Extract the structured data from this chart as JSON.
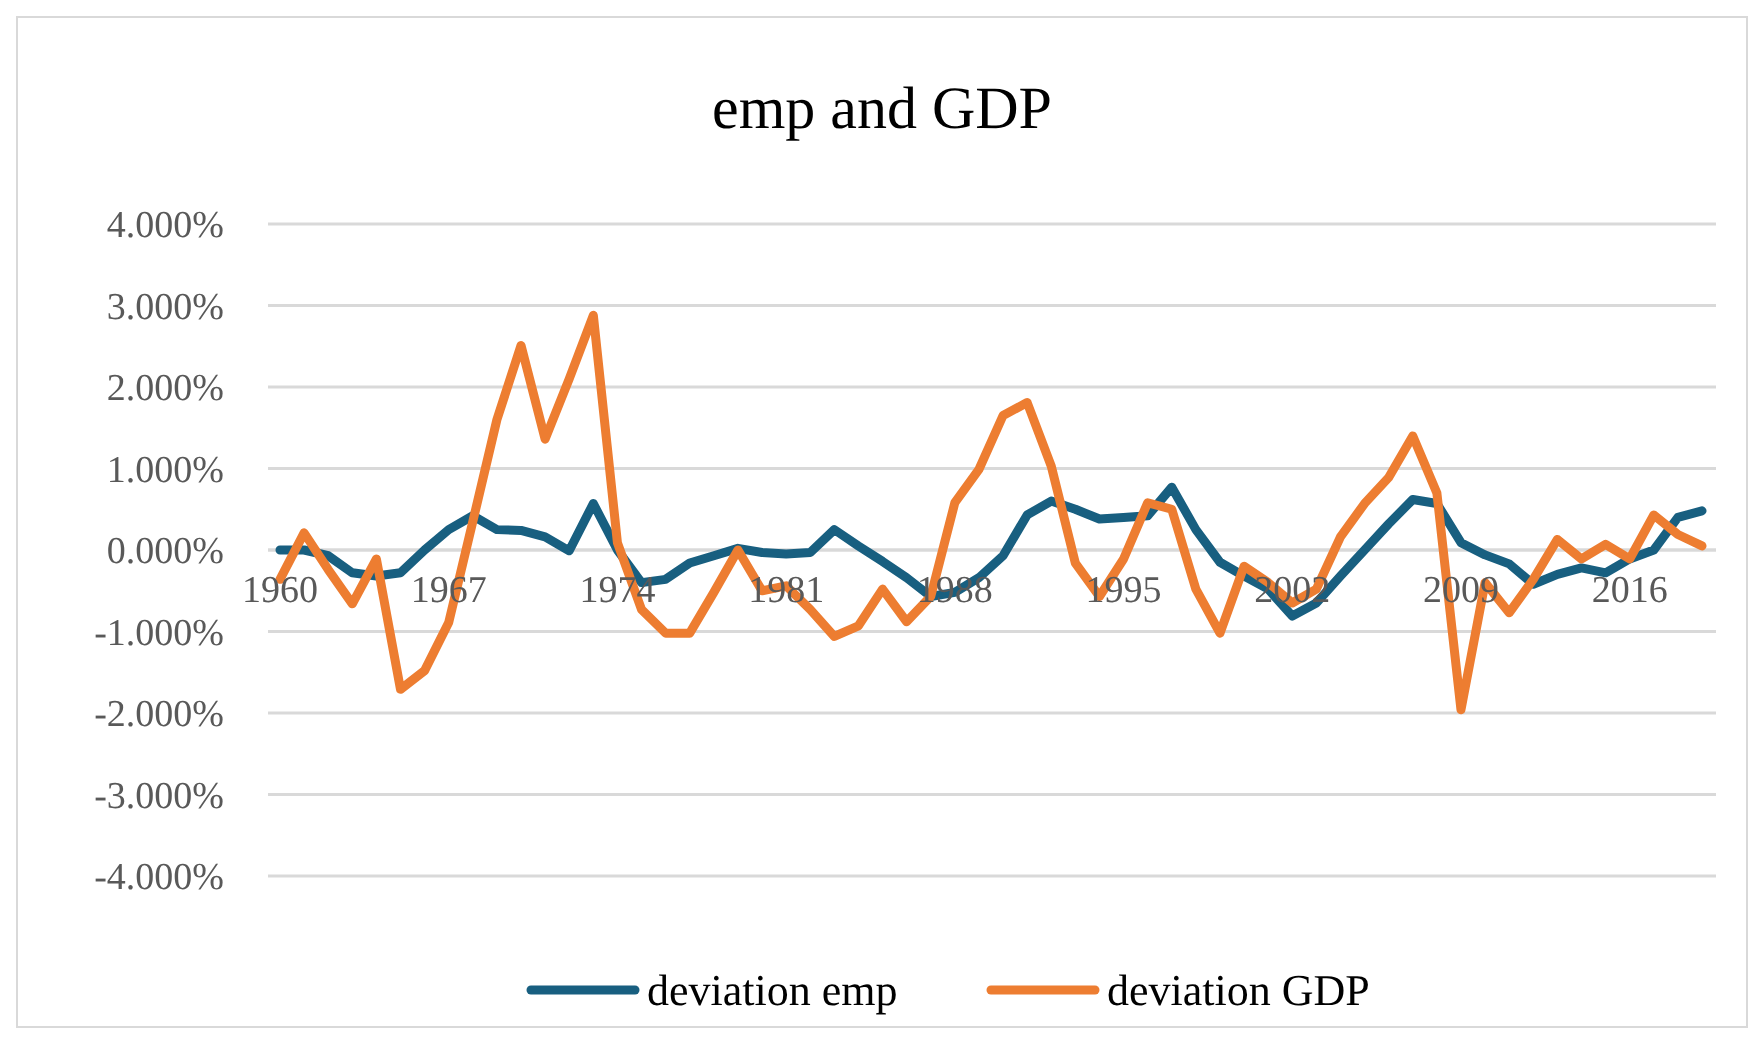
{
  "chart_data": {
    "type": "line",
    "title": "emp and GDP",
    "categories": [
      "1960",
      null,
      null,
      null,
      null,
      null,
      null,
      "1967",
      null,
      null,
      null,
      null,
      null,
      null,
      "1974",
      null,
      null,
      null,
      null,
      null,
      null,
      "1981",
      null,
      null,
      null,
      null,
      null,
      null,
      "1988",
      null,
      null,
      null,
      null,
      null,
      null,
      "1995",
      null,
      null,
      null,
      null,
      null,
      null,
      "2002",
      null,
      null,
      null,
      null,
      null,
      null,
      "2009",
      null,
      null,
      null,
      null,
      null,
      null,
      "2016",
      null,
      null,
      null
    ],
    "series": [
      {
        "name": "deviation emp",
        "color": "#185f80",
        "values": [
          0,
          0,
          -0.07,
          -0.28,
          -0.32,
          -0.28,
          0,
          0.25,
          0.42,
          0.25,
          0.24,
          0.16,
          -0.01,
          0.57,
          0,
          -0.4,
          -0.36,
          -0.16,
          -0.07,
          0.02,
          -0.03,
          -0.05,
          -0.03,
          0.25,
          0.05,
          -0.14,
          -0.34,
          -0.57,
          -0.52,
          -0.34,
          -0.07,
          0.43,
          0.6,
          0.5,
          0.38,
          0.4,
          0.42,
          0.77,
          0.25,
          -0.15,
          -0.32,
          -0.48,
          -0.81,
          -0.65,
          -0.32,
          0,
          0.32,
          0.62,
          0.57,
          0.09,
          -0.06,
          -0.17,
          -0.42,
          -0.3,
          -0.22,
          -0.28,
          -0.11,
          0,
          0.4,
          0.48
        ]
      },
      {
        "name": "deviation GDP",
        "color": "#ed7d31",
        "values": [
          -0.36,
          0.21,
          -0.24,
          -0.66,
          -0.11,
          -1.71,
          -1.48,
          -0.89,
          0.35,
          1.6,
          2.51,
          1.36,
          2.1,
          2.88,
          0.09,
          -0.73,
          -1.02,
          -1.02,
          -0.52,
          0,
          -0.5,
          -0.44,
          -0.73,
          -1.06,
          -0.93,
          -0.48,
          -0.88,
          -0.57,
          0.58,
          0.99,
          1.65,
          1.81,
          1.03,
          -0.16,
          -0.57,
          -0.11,
          0.58,
          0.5,
          -0.48,
          -1.02,
          -0.2,
          -0.4,
          -0.65,
          -0.48,
          0.16,
          0.57,
          0.89,
          1.4,
          0.7,
          -1.96,
          -0.4,
          -0.77,
          -0.36,
          0.13,
          -0.11,
          0.07,
          -0.11,
          0.43,
          0.19,
          0.05
        ]
      }
    ],
    "ylim": [
      -4,
      4
    ],
    "yticks": [
      {
        "value": -4,
        "label": "-4.000%"
      },
      {
        "value": -3,
        "label": "-3.000%"
      },
      {
        "value": -2,
        "label": "-2.000%"
      },
      {
        "value": -1,
        "label": "-1.000%"
      },
      {
        "value": 0,
        "label": "0.000%"
      },
      {
        "value": 1,
        "label": "1.000%"
      },
      {
        "value": 2,
        "label": "2.000%"
      },
      {
        "value": 3,
        "label": "3.000%"
      },
      {
        "value": 4,
        "label": "4.000%"
      }
    ],
    "grid": "y",
    "legend": "bottom",
    "line_style": "solid",
    "marker": "none"
  }
}
